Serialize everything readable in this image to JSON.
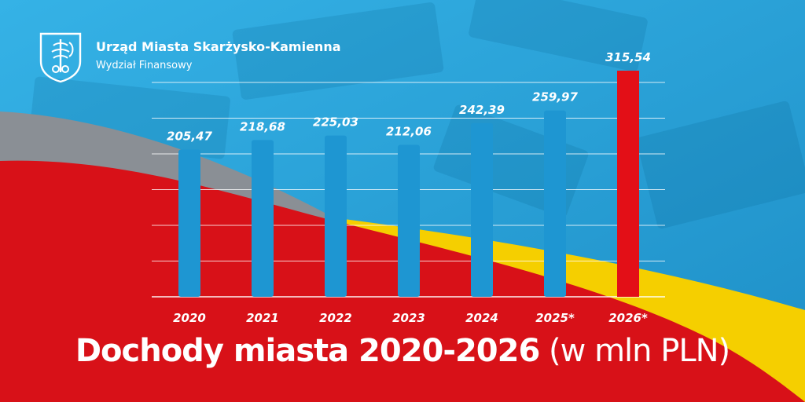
{
  "header": {
    "org_name": "Urząd Miasta Skarżysko-Kamienna",
    "department": "Wydział Finansowy",
    "logo_icon": "city-coat-of-arms-icon"
  },
  "colors": {
    "background_blue": "#2aa3d6",
    "bar_blue": "#1e96d2",
    "bar_highlight": "#e30f17",
    "red": "#d81118",
    "yellow": "#f5cf00",
    "grey": "#8a8f95",
    "gridline": "#ffffff",
    "text": "#ffffff"
  },
  "chart_data": {
    "type": "bar",
    "title": "Dochody miasta 2020-2026",
    "title_unit": "(w mln PLN)",
    "categories": [
      "2020",
      "2021",
      "2022",
      "2023",
      "2024",
      "2025*",
      "2026*"
    ],
    "values": [
      205.47,
      218.68,
      225.03,
      212.06,
      242.39,
      259.97,
      315.54
    ],
    "value_labels": [
      "205,47",
      "218,68",
      "225,03",
      "212,06",
      "242,39",
      "259,97",
      "315,54"
    ],
    "highlight_category": "2026*",
    "ylim": [
      0,
      330
    ],
    "grid": true,
    "xlabel": "",
    "ylabel": ""
  }
}
